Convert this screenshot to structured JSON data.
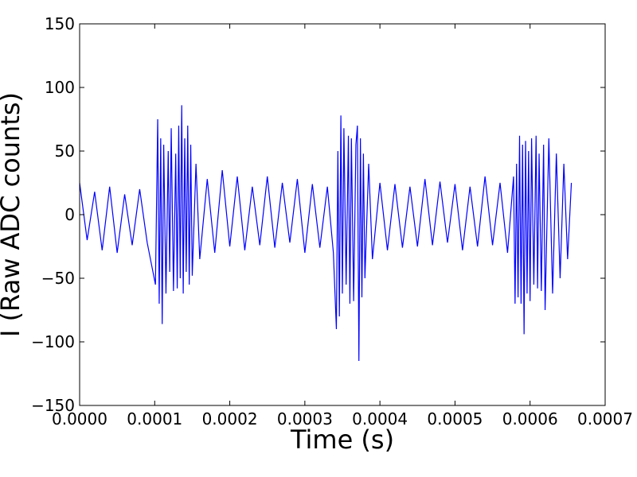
{
  "chart_data": {
    "type": "line",
    "title": "",
    "xlabel": "Time (s)",
    "ylabel": "I (Raw ADC counts)",
    "xlim": [
      0,
      0.0007
    ],
    "ylim": [
      -150,
      150
    ],
    "xticks": [
      0,
      0.0001,
      0.0002,
      0.0003,
      0.0004,
      0.0005,
      0.0006,
      0.0007
    ],
    "xtick_labels": [
      "0.0000",
      "0.0001",
      "0.0002",
      "0.0003",
      "0.0004",
      "0.0005",
      "0.0006",
      "0.0007"
    ],
    "yticks": [
      -150,
      -100,
      -50,
      0,
      50,
      100,
      150
    ],
    "ytick_labels": [
      "−150",
      "−100",
      "−50",
      "0",
      "50",
      "100",
      "150"
    ],
    "grid": false,
    "series": [
      {
        "color": "#0000ff",
        "x": [
          0.0,
          1e-05,
          2e-05,
          3e-05,
          4e-05,
          5e-05,
          6e-05,
          7e-05,
          8e-05,
          9e-05,
          0.000101,
          0.000104,
          0.000106,
          0.000108,
          0.00011,
          0.000112,
          0.000115,
          0.000118,
          0.00012,
          0.000122,
          0.000125,
          0.000128,
          0.00013,
          0.000132,
          0.000134,
          0.000136,
          0.000138,
          0.00014,
          0.000142,
          0.000144,
          0.000146,
          0.000148,
          0.00015,
          0.000155,
          0.00016,
          0.00017,
          0.00018,
          0.00019,
          0.0002,
          0.00021,
          0.00022,
          0.00023,
          0.00024,
          0.00025,
          0.00026,
          0.00027,
          0.00028,
          0.00029,
          0.0003,
          0.00031,
          0.00032,
          0.00033,
          0.000338,
          0.000342,
          0.000344,
          0.000346,
          0.000348,
          0.00035,
          0.000352,
          0.000355,
          0.000358,
          0.00036,
          0.000362,
          0.000365,
          0.000368,
          0.00037,
          0.000372,
          0.000374,
          0.000376,
          0.000378,
          0.00038,
          0.000385,
          0.00039,
          0.0004,
          0.00041,
          0.00042,
          0.00043,
          0.00044,
          0.00045,
          0.00046,
          0.00047,
          0.00048,
          0.00049,
          0.0005,
          0.00051,
          0.00052,
          0.00053,
          0.00054,
          0.00055,
          0.00056,
          0.00057,
          0.000578,
          0.00058,
          0.000582,
          0.000584,
          0.000586,
          0.000588,
          0.00059,
          0.000592,
          0.000594,
          0.000596,
          0.000598,
          0.0006,
          0.000602,
          0.000605,
          0.000608,
          0.00061,
          0.000612,
          0.000615,
          0.000618,
          0.00062,
          0.000625,
          0.00063,
          0.000635,
          0.00064,
          0.000645,
          0.00065,
          0.000655
        ],
        "y": [
          25,
          -20,
          18,
          -28,
          22,
          -30,
          16,
          -24,
          20,
          -22,
          -55,
          75,
          -70,
          60,
          -86,
          55,
          -62,
          50,
          -45,
          68,
          -60,
          48,
          -58,
          70,
          -50,
          86,
          -62,
          60,
          -45,
          70,
          -55,
          55,
          -48,
          40,
          -35,
          28,
          -30,
          35,
          -25,
          30,
          -28,
          22,
          -24,
          30,
          -26,
          25,
          -22,
          28,
          -30,
          24,
          -26,
          22,
          -30,
          -90,
          50,
          -80,
          78,
          -62,
          68,
          -55,
          62,
          -70,
          60,
          -68,
          55,
          70,
          -115,
          60,
          -65,
          48,
          -50,
          40,
          -35,
          25,
          -28,
          24,
          -26,
          22,
          -25,
          28,
          -24,
          26,
          -22,
          24,
          -28,
          22,
          -25,
          30,
          -24,
          25,
          -30,
          30,
          -70,
          40,
          -65,
          62,
          -70,
          55,
          -94,
          58,
          -62,
          50,
          -68,
          60,
          -55,
          62,
          -58,
          48,
          -60,
          55,
          -75,
          60,
          -62,
          48,
          -50,
          40,
          -35,
          25
        ]
      }
    ]
  }
}
